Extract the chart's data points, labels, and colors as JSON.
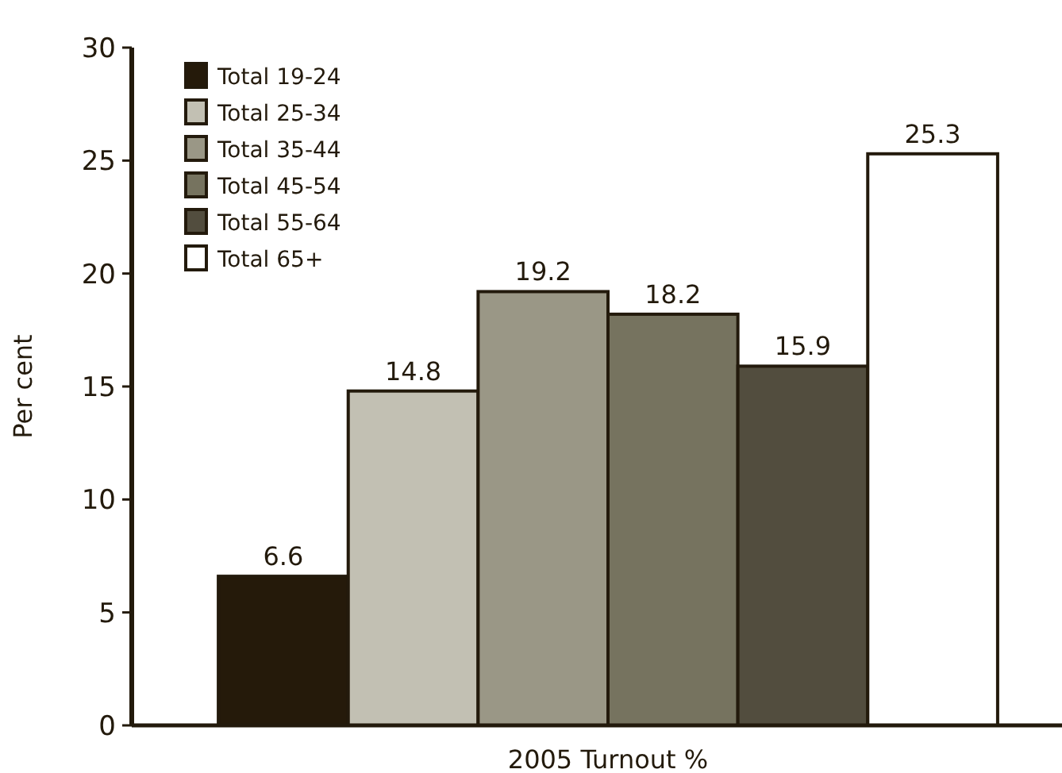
{
  "chart_data": {
    "type": "bar",
    "ylabel": "Per cent",
    "categories": [
      "2005 Turnout %"
    ],
    "series": [
      {
        "name": "Total 19-24",
        "color": "#251a0a",
        "values": [
          6.6
        ]
      },
      {
        "name": "Total 25-34",
        "color": "#c2c0b3",
        "values": [
          14.8
        ]
      },
      {
        "name": "Total 35-44",
        "color": "#9a9786",
        "values": [
          19.2
        ]
      },
      {
        "name": "Total 45-54",
        "color": "#76735f",
        "values": [
          18.2
        ]
      },
      {
        "name": "Total 55-64",
        "color": "#524d3e",
        "values": [
          15.9
        ]
      },
      {
        "name": "Total 65+",
        "color": "#ffffff",
        "values": [
          25.3
        ]
      }
    ],
    "ylim": [
      0,
      30
    ],
    "yticks": [
      0,
      5,
      10,
      15,
      20,
      25,
      30
    ],
    "data_labels": true,
    "legend": "top left",
    "grid": false
  }
}
